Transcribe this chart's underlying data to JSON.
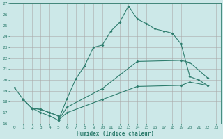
{
  "xlabel": "Humidex (Indice chaleur)",
  "bg_color": "#cce8e8",
  "grid_color": "#aaaaaa",
  "line_color": "#2e7d6e",
  "xlim": [
    -0.5,
    23.5
  ],
  "ylim": [
    16,
    27
  ],
  "xticks": [
    0,
    1,
    2,
    3,
    4,
    5,
    6,
    7,
    8,
    9,
    10,
    11,
    12,
    13,
    14,
    15,
    16,
    17,
    18,
    19,
    20,
    21,
    22,
    23
  ],
  "yticks": [
    16,
    17,
    18,
    19,
    20,
    21,
    22,
    23,
    24,
    25,
    26,
    27
  ],
  "line1_x": [
    0,
    1,
    2,
    3,
    4,
    5,
    6,
    7,
    8,
    9,
    10,
    11,
    12,
    13,
    14,
    15,
    16,
    17,
    18,
    19,
    20,
    21,
    22
  ],
  "line1_y": [
    19.3,
    18.2,
    17.4,
    17.0,
    16.7,
    16.3,
    18.3,
    20.1,
    21.3,
    23.0,
    23.2,
    24.5,
    25.3,
    26.8,
    25.6,
    25.2,
    24.7,
    24.5,
    24.3,
    23.3,
    20.3,
    20.0,
    19.5
  ],
  "line2_x": [
    1,
    2,
    3,
    4,
    5,
    5,
    6,
    10,
    14,
    19,
    20,
    22
  ],
  "line2_y": [
    18.2,
    17.4,
    17.3,
    17.0,
    16.7,
    16.3,
    17.5,
    19.2,
    21.7,
    21.8,
    21.6,
    20.2
  ],
  "line3_x": [
    1,
    2,
    3,
    4,
    5,
    5,
    6,
    10,
    14,
    19,
    20,
    22
  ],
  "line3_y": [
    18.2,
    17.4,
    17.3,
    17.0,
    16.7,
    16.3,
    17.0,
    18.2,
    19.4,
    19.5,
    19.8,
    19.5
  ]
}
